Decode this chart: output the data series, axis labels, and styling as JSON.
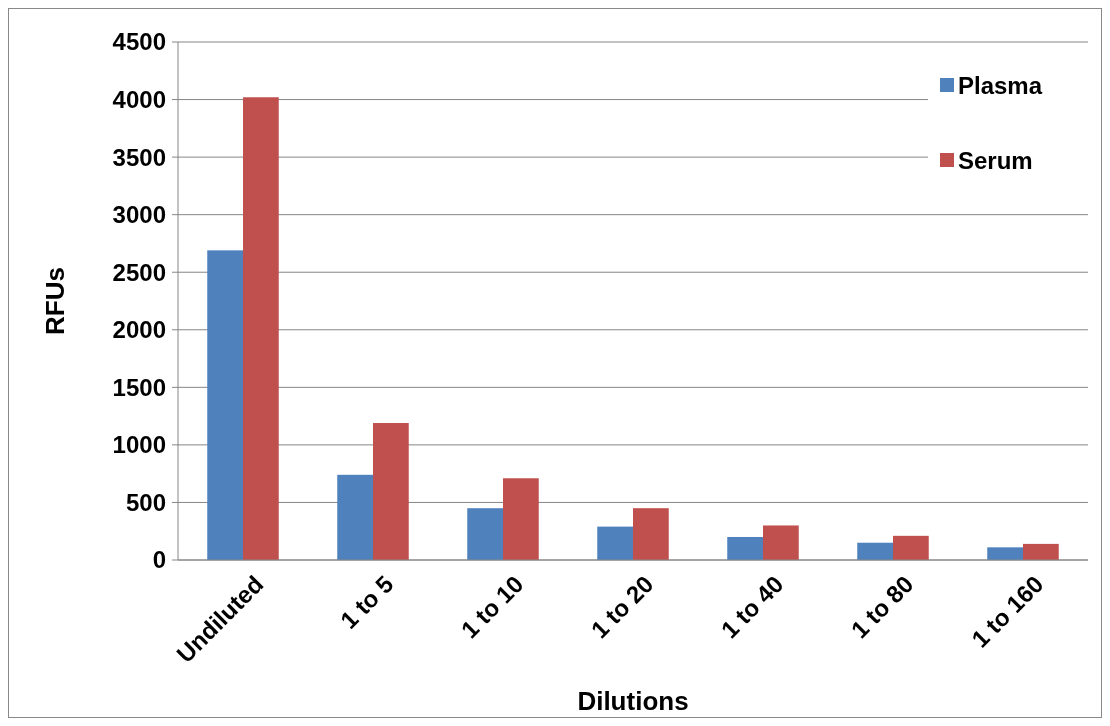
{
  "chart_data": {
    "type": "bar",
    "xlabel": "Dilutions",
    "ylabel": "RFUs",
    "categories": [
      "Undiluted",
      "1 to 5",
      "1 to 10",
      "1 to 20",
      "1 to 40",
      "1 to 80",
      "1 to 160"
    ],
    "series": [
      {
        "name": "Plasma",
        "color": "#4f81bd",
        "values": [
          2690,
          740,
          450,
          290,
          200,
          150,
          110
        ]
      },
      {
        "name": "Serum",
        "color": "#c0504d",
        "values": [
          4020,
          1190,
          710,
          450,
          300,
          210,
          140
        ]
      }
    ],
    "ylim": [
      0,
      4500
    ],
    "yticks": [
      0,
      500,
      1000,
      1500,
      2000,
      2500,
      3000,
      3500,
      4000,
      4500
    ],
    "grid": "y",
    "legend": "top right"
  }
}
